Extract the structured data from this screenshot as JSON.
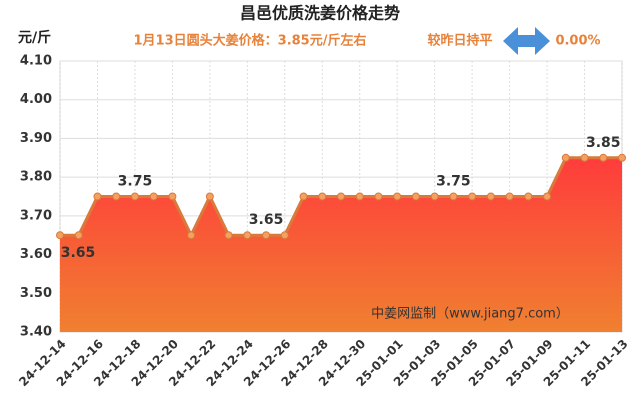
{
  "chart_data": {
    "type": "area-line",
    "title": "昌邑优质洗姜价格走势",
    "y_unit": "元/斤",
    "subtitle": "1月13日圆头大姜价格：3.85元/斤左右",
    "change_text": "较昨日持平",
    "change_value": "0.00%",
    "watermark": "中姜网监制（www.jiang7.com）",
    "categories": [
      "24-12-14",
      null,
      "24-12-16",
      null,
      "24-12-18",
      null,
      "24-12-20",
      null,
      "24-12-22",
      null,
      "24-12-24",
      null,
      "24-12-26",
      null,
      "24-12-28",
      null,
      "24-12-30",
      null,
      "25-01-01",
      null,
      "25-01-03",
      null,
      "25-01-05",
      null,
      "25-01-07",
      null,
      "25-01-09",
      null,
      "25-01-11",
      null,
      "25-01-13"
    ],
    "series": [
      {
        "color": "#d97a3c",
        "values": [
          3.65,
          3.65,
          3.75,
          3.75,
          3.75,
          3.75,
          3.75,
          3.65,
          3.75,
          3.65,
          3.65,
          3.65,
          3.65,
          3.75,
          3.75,
          3.75,
          3.75,
          3.75,
          3.75,
          3.75,
          3.75,
          3.75,
          3.75,
          3.75,
          3.75,
          3.75,
          3.75,
          3.85,
          3.85,
          3.85,
          3.85
        ],
        "value_labels": [
          "3.65",
          null,
          null,
          null,
          "3.75",
          null,
          null,
          null,
          null,
          null,
          null,
          "3.65",
          null,
          null,
          null,
          null,
          null,
          null,
          null,
          null,
          null,
          "3.75",
          null,
          null,
          null,
          null,
          null,
          null,
          null,
          "3.85",
          null
        ]
      }
    ],
    "ylim": [
      3.4,
      4.1
    ],
    "yticks": [
      {
        "value": 3.4,
        "label": "3.40"
      },
      {
        "value": 3.5,
        "label": "3.50"
      },
      {
        "value": 3.6,
        "label": "3.60"
      },
      {
        "value": 3.7,
        "label": "3.70"
      },
      {
        "value": 3.8,
        "label": "3.80"
      },
      {
        "value": 3.9,
        "label": "3.90"
      },
      {
        "value": 4.0,
        "label": "4.00"
      },
      {
        "value": 4.1,
        "label": "4.10"
      }
    ],
    "grid": true
  }
}
